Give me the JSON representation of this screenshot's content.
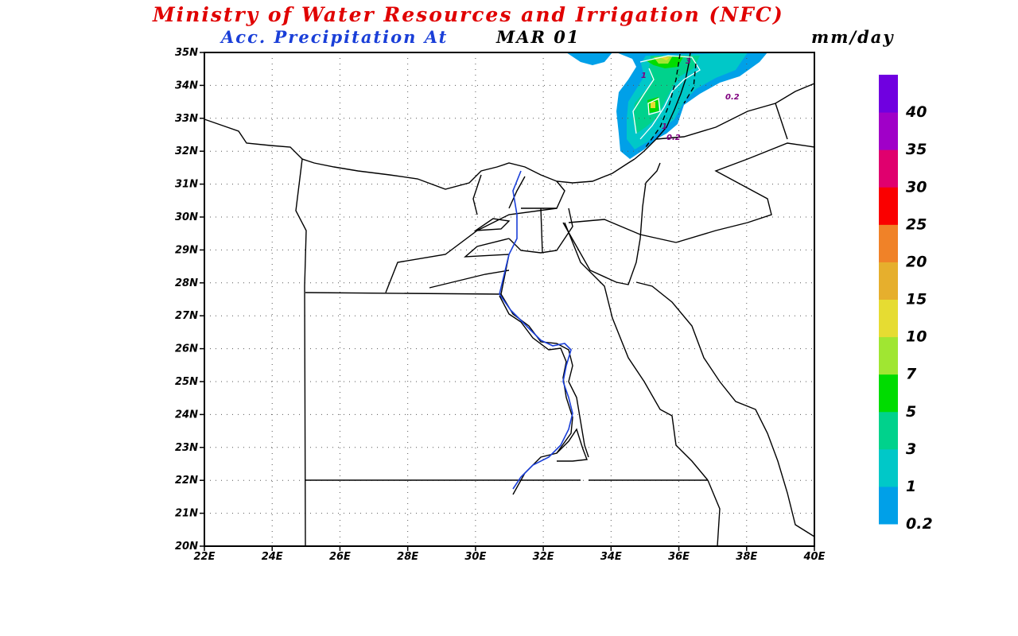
{
  "header": {
    "title": "Ministry of Water Resources and Irrigation (NFC)",
    "subtitle_prefix": "Acc. Precipitation  At",
    "date": "MAR 01",
    "unit": "mm/day"
  },
  "axes": {
    "lat_labels": [
      "20N",
      "21N",
      "22N",
      "23N",
      "24N",
      "25N",
      "26N",
      "27N",
      "28N",
      "29N",
      "30N",
      "31N",
      "32N",
      "33N",
      "34N",
      "35N"
    ],
    "lon_labels": [
      "22E",
      "24E",
      "26E",
      "28E",
      "30E",
      "32E",
      "34E",
      "36E",
      "38E",
      "40E"
    ]
  },
  "colorbar": {
    "levels": [
      "0.2",
      "1",
      "3",
      "5",
      "7",
      "10",
      "15",
      "20",
      "25",
      "30",
      "35",
      "40"
    ],
    "colors": [
      "#00a0e8",
      "#00c8c8",
      "#00d28c",
      "#00dc00",
      "#a0e632",
      "#e6dc32",
      "#e6af2d",
      "#f08228",
      "#fa0000",
      "#e0006e",
      "#a000c8",
      "#7000e0"
    ]
  },
  "contour_labels": [
    "1",
    "3",
    "0.2",
    "1",
    "0.2"
  ],
  "colors": {
    "title": "#e00000",
    "subtitle": "#1a3fd8",
    "nile": "#1a3fd8"
  }
}
